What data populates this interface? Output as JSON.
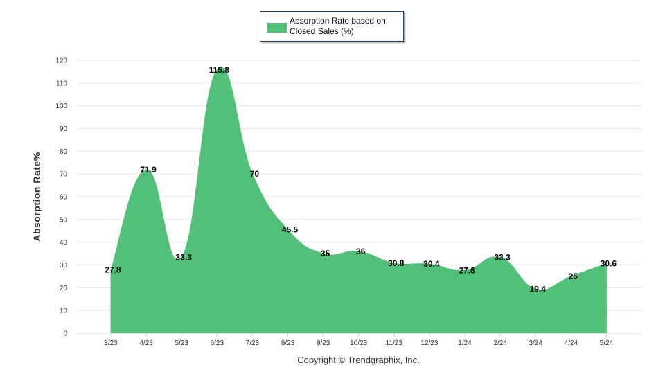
{
  "legend": {
    "label": "Absorption Rate based on Closed Sales (%)",
    "color": "#53c07a"
  },
  "copyright": "Copyright © Trendgraphix, Inc.",
  "chart_data": {
    "type": "area",
    "title": "",
    "xlabel": "",
    "ylabel": "Absorption Rate%",
    "categories": [
      "3/23",
      "4/23",
      "5/23",
      "6/23",
      "7/23",
      "8/23",
      "9/23",
      "10/23",
      "11/23",
      "12/23",
      "1/24",
      "2/24",
      "3/24",
      "4/24",
      "5/24"
    ],
    "series": [
      {
        "name": "Absorption Rate based on Closed Sales (%)",
        "values": [
          27.8,
          71.9,
          33.3,
          115.8,
          70,
          45.5,
          35,
          36,
          30.8,
          30.4,
          27.6,
          33.3,
          19.4,
          25,
          30.6
        ]
      }
    ],
    "ylim": [
      0,
      120
    ],
    "yticks": [
      0,
      10,
      20,
      30,
      40,
      50,
      60,
      70,
      80,
      90,
      100,
      110,
      120
    ],
    "grid": true,
    "color": "#53c07a",
    "legend_position": "top-center"
  }
}
